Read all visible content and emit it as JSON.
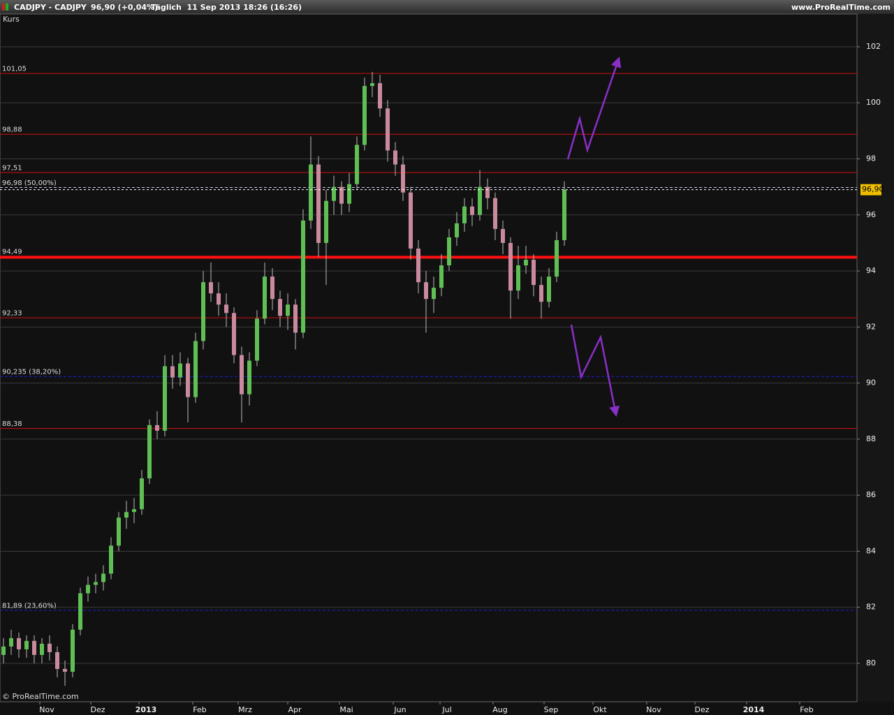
{
  "chart_data": {
    "type": "candlestick",
    "title": "CADJPY - CADJPY",
    "subtitle": "96,90 (+0,04%)",
    "period": "Täglich  11 Sep 2013 18:26 (16:26)",
    "source": "www.ProRealTime.com",
    "ylabel": "Kurs",
    "copyright": "© ProRealTime.com",
    "x_labels": [
      "Nov",
      "Dez",
      "2013",
      "Feb",
      "Mrz",
      "Apr",
      "Mai",
      "Jun",
      "Jul",
      "Aug",
      "Sep",
      "Okt",
      "Nov",
      "Dez",
      "2014",
      "Feb"
    ],
    "ylim": [
      78.63,
      103.17
    ],
    "yticks": [
      80,
      82,
      84,
      86,
      88,
      90,
      92,
      94,
      96,
      98,
      100,
      102
    ],
    "grid": true,
    "up_color": "#5fbf55",
    "down_color": "#c88a9c",
    "last_price": {
      "value": 96.9,
      "label": "96,90"
    },
    "levels": [
      {
        "value": 101.05,
        "label": "101,05",
        "style": "solid",
        "color": "#d01010"
      },
      {
        "value": 98.88,
        "label": "98,88",
        "style": "solid",
        "color": "#d01010"
      },
      {
        "value": 97.51,
        "label": "97,51",
        "style": "solid",
        "color": "#d01010"
      },
      {
        "value": 96.98,
        "label": "96,98 (50,00%)",
        "style": "dashed",
        "color": "#c8c8f0"
      },
      {
        "value": 94.49,
        "label": "94,49",
        "style": "bold",
        "color": "#ff1010"
      },
      {
        "value": 92.33,
        "label": "92,33",
        "style": "solid",
        "color": "#d01010"
      },
      {
        "value": 90.235,
        "label": "90,235 (38,20%)",
        "style": "dashed",
        "color": "#2020e0"
      },
      {
        "value": 88.38,
        "label": "88,38",
        "style": "solid",
        "color": "#d01010"
      },
      {
        "value": 81.89,
        "label": "81,89 (23,60%)",
        "style": "dashed",
        "color": "#2020e0"
      }
    ],
    "open": [
      80.3,
      80.6,
      80.9,
      80.5,
      80.8,
      80.3,
      80.7,
      80.4,
      79.8,
      79.7,
      81.2,
      82.5,
      82.8,
      82.9,
      83.2,
      84.2,
      85.2,
      85.4,
      85.5,
      86.6,
      88.5,
      88.3,
      90.6,
      90.2,
      90.7,
      89.5,
      91.5,
      93.6,
      93.2,
      92.8,
      92.5,
      91.0,
      89.6,
      90.8,
      92.3,
      93.8,
      93.0,
      92.4,
      92.8,
      91.8,
      95.8,
      97.8,
      95.0,
      96.5,
      97.0,
      96.4,
      97.1,
      98.5,
      100.6,
      100.7,
      99.8,
      98.3,
      97.8,
      96.8,
      94.8,
      93.6,
      93.0,
      93.4,
      94.2,
      95.2,
      95.7,
      96.3,
      96.0,
      97.0,
      96.6,
      95.5,
      95.0,
      93.3,
      94.2,
      94.4,
      93.5,
      92.9,
      93.8,
      95.1
    ],
    "high": [
      80.9,
      81.2,
      81.1,
      81.0,
      81.0,
      80.9,
      81.0,
      80.6,
      80.1,
      81.4,
      82.7,
      83.1,
      83.2,
      83.5,
      84.5,
      85.4,
      85.8,
      85.9,
      86.9,
      88.7,
      89.0,
      91.0,
      91.0,
      91.1,
      90.9,
      91.8,
      94.0,
      94.3,
      93.6,
      93.2,
      92.7,
      91.3,
      91.1,
      92.6,
      94.3,
      94.1,
      93.3,
      93.2,
      93.0,
      96.2,
      98.8,
      98.1,
      96.9,
      97.4,
      97.2,
      97.5,
      98.8,
      100.9,
      101.1,
      101.0,
      100.1,
      98.6,
      98.1,
      97.0,
      95.1,
      94.0,
      93.8,
      94.6,
      95.5,
      96.1,
      96.6,
      96.6,
      97.6,
      97.3,
      96.8,
      95.8,
      95.2,
      94.9,
      94.9,
      94.6,
      93.8,
      94.1,
      95.4,
      97.2
    ],
    "low": [
      80.0,
      80.3,
      80.2,
      80.2,
      80.0,
      80.0,
      80.1,
      79.5,
      79.2,
      79.5,
      81.0,
      82.2,
      82.5,
      82.6,
      83.0,
      84.0,
      84.8,
      85.0,
      85.3,
      86.4,
      88.0,
      88.1,
      89.8,
      89.9,
      88.6,
      89.3,
      91.2,
      92.9,
      92.4,
      92.0,
      90.7,
      88.6,
      89.2,
      90.6,
      92.1,
      92.6,
      92.0,
      91.9,
      91.2,
      91.6,
      95.5,
      94.5,
      93.5,
      96.0,
      96.0,
      96.1,
      96.9,
      98.3,
      100.2,
      99.5,
      97.9,
      97.4,
      96.5,
      94.4,
      93.2,
      91.8,
      92.5,
      93.1,
      94.0,
      94.9,
      95.4,
      95.6,
      95.8,
      96.2,
      95.1,
      94.6,
      92.3,
      93.0,
      93.9,
      93.1,
      92.3,
      92.7,
      93.6,
      94.9
    ],
    "close": [
      80.6,
      80.9,
      80.5,
      80.8,
      80.3,
      80.7,
      80.4,
      79.8,
      79.7,
      81.2,
      82.5,
      82.8,
      82.9,
      83.2,
      84.2,
      85.2,
      85.4,
      85.5,
      86.6,
      88.5,
      88.3,
      90.6,
      90.2,
      90.7,
      89.5,
      91.5,
      93.6,
      93.2,
      92.8,
      92.5,
      91.0,
      89.6,
      90.8,
      92.3,
      93.8,
      93.0,
      92.4,
      92.8,
      91.8,
      95.8,
      97.8,
      95.0,
      96.5,
      97.0,
      96.4,
      97.1,
      98.5,
      100.6,
      100.7,
      99.8,
      98.3,
      97.8,
      96.8,
      94.8,
      93.6,
      93.0,
      93.4,
      94.2,
      95.2,
      95.7,
      96.3,
      96.0,
      97.0,
      96.6,
      95.5,
      95.0,
      93.3,
      94.2,
      94.4,
      93.5,
      92.9,
      93.8,
      95.1,
      96.9
    ]
  }
}
